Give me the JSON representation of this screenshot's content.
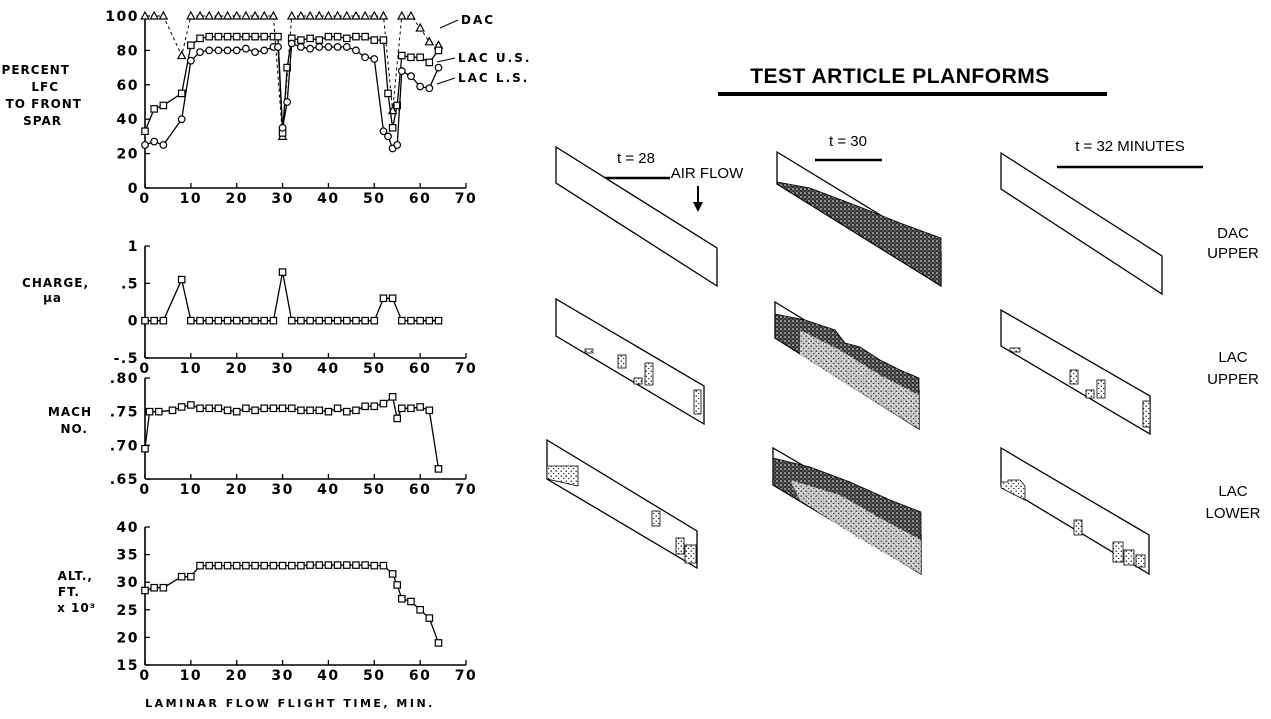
{
  "chart_data": [
    {
      "type": "line",
      "ylabel": [
        "PERCENT",
        "LFC",
        "TO FRONT",
        "SPAR"
      ],
      "xlim": [
        0,
        70
      ],
      "ylim": [
        0,
        100
      ],
      "xticks": [
        "0",
        "10",
        "20",
        "30",
        "40",
        "50",
        "60",
        "70"
      ],
      "yticks": [
        "0",
        "20",
        "40",
        "60",
        "80",
        "100"
      ],
      "series": [
        {
          "name": "DAC",
          "marker": "triangle",
          "x": [
            0,
            2,
            4,
            8,
            10,
            12,
            14,
            16,
            18,
            20,
            22,
            24,
            26,
            28,
            30,
            32,
            34,
            36,
            38,
            40,
            42,
            44,
            46,
            48,
            50,
            52,
            54,
            56,
            58,
            60,
            62,
            64
          ],
          "y": [
            100,
            100,
            100,
            77,
            100,
            100,
            100,
            100,
            100,
            100,
            100,
            100,
            100,
            100,
            30,
            100,
            100,
            100,
            100,
            100,
            100,
            100,
            100,
            100,
            100,
            100,
            45,
            100,
            100,
            93,
            85,
            83
          ]
        },
        {
          "name": "LAC U.S.",
          "marker": "square",
          "x": [
            0,
            2,
            4,
            8,
            10,
            12,
            14,
            16,
            18,
            20,
            22,
            24,
            26,
            28,
            29,
            30,
            31,
            32,
            34,
            36,
            38,
            40,
            42,
            44,
            46,
            48,
            50,
            52,
            53,
            54,
            55,
            56,
            58,
            60,
            62,
            64
          ],
          "y": [
            33,
            46,
            48,
            55,
            83,
            87,
            88,
            88,
            88,
            88,
            88,
            88,
            88,
            88,
            88,
            32,
            70,
            87,
            86,
            87,
            86,
            88,
            88,
            87,
            88,
            88,
            86,
            86,
            55,
            35,
            48,
            77,
            76,
            76,
            73,
            80
          ]
        },
        {
          "name": "LAC L.S.",
          "marker": "circle",
          "x": [
            0,
            2,
            4,
            8,
            10,
            12,
            14,
            16,
            18,
            20,
            22,
            24,
            26,
            28,
            29,
            30,
            31,
            32,
            34,
            36,
            38,
            40,
            42,
            44,
            46,
            48,
            50,
            52,
            53,
            54,
            55,
            56,
            58,
            60,
            62,
            64
          ],
          "y": [
            25,
            27,
            25,
            40,
            74,
            79,
            80,
            80,
            80,
            80,
            81,
            79,
            80,
            82,
            82,
            35,
            50,
            84,
            82,
            81,
            82,
            82,
            82,
            82,
            80,
            76,
            75,
            33,
            30,
            23,
            25,
            68,
            65,
            59,
            58,
            70
          ]
        }
      ]
    },
    {
      "type": "line",
      "ylabel": [
        "CHARGE,",
        "μa"
      ],
      "xlim": [
        0,
        70
      ],
      "ylim": [
        -0.5,
        1
      ],
      "xticks": [
        "0",
        "10",
        "20",
        "30",
        "40",
        "50",
        "60",
        "70"
      ],
      "yticks": [
        "-.5",
        "0",
        ".5",
        "1"
      ],
      "series": [
        {
          "marker": "square",
          "x": [
            0,
            2,
            4,
            8,
            10,
            12,
            14,
            16,
            18,
            20,
            22,
            24,
            26,
            28,
            30,
            32,
            34,
            36,
            38,
            40,
            42,
            44,
            46,
            48,
            50,
            52,
            54,
            56,
            58,
            60,
            62,
            64
          ],
          "y": [
            0,
            0,
            0,
            0.55,
            0,
            0,
            0,
            0,
            0,
            0,
            0,
            0,
            0,
            0,
            0.65,
            0,
            0,
            0,
            0,
            0,
            0,
            0,
            0,
            0,
            0,
            0.3,
            0.3,
            0,
            0,
            0,
            0,
            0
          ]
        }
      ]
    },
    {
      "type": "line",
      "ylabel": [
        "MACH",
        "NO."
      ],
      "xlim": [
        0,
        70
      ],
      "ylim": [
        0.65,
        0.8
      ],
      "xticks": [
        "0",
        "10",
        "20",
        "30",
        "40",
        "50",
        "60",
        "70"
      ],
      "yticks": [
        ".65",
        ".70",
        ".75",
        ".80"
      ],
      "series": [
        {
          "marker": "square",
          "x": [
            0,
            1,
            3,
            6,
            8,
            10,
            12,
            14,
            16,
            18,
            20,
            22,
            24,
            26,
            28,
            30,
            32,
            34,
            36,
            38,
            40,
            42,
            44,
            46,
            48,
            50,
            52,
            54,
            55,
            56,
            58,
            60,
            62,
            64
          ],
          "y": [
            0.695,
            0.75,
            0.75,
            0.752,
            0.757,
            0.76,
            0.755,
            0.755,
            0.755,
            0.752,
            0.75,
            0.755,
            0.752,
            0.755,
            0.755,
            0.755,
            0.755,
            0.752,
            0.752,
            0.752,
            0.75,
            0.755,
            0.75,
            0.752,
            0.758,
            0.758,
            0.762,
            0.772,
            0.74,
            0.755,
            0.755,
            0.757,
            0.752,
            0.665
          ]
        }
      ]
    },
    {
      "type": "line",
      "ylabel": [
        "ALT.,",
        "FT.",
        "x 10³"
      ],
      "xlabel": "LAMINAR FLOW FLIGHT TIME, MIN.",
      "xlim": [
        0,
        70
      ],
      "ylim": [
        15,
        40
      ],
      "xticks": [
        "0",
        "10",
        "20",
        "30",
        "40",
        "50",
        "60",
        "70"
      ],
      "yticks": [
        "15",
        "20",
        "25",
        "30",
        "35",
        "40"
      ],
      "series": [
        {
          "marker": "square",
          "x": [
            0,
            2,
            4,
            8,
            10,
            12,
            14,
            16,
            18,
            20,
            22,
            24,
            26,
            28,
            30,
            32,
            34,
            36,
            38,
            40,
            42,
            44,
            46,
            48,
            50,
            52,
            54,
            55,
            56,
            58,
            60,
            62,
            64
          ],
          "y": [
            28.5,
            29,
            29,
            31,
            31,
            33,
            33,
            33,
            33,
            33,
            33,
            33,
            33,
            33,
            33,
            33,
            33,
            33.1,
            33.1,
            33.1,
            33.1,
            33.1,
            33.1,
            33.1,
            33,
            33,
            31.5,
            29.5,
            27,
            26.5,
            25,
            23.5,
            19
          ]
        }
      ]
    }
  ],
  "legend_labels": {
    "dac": "DAC",
    "lac_us": "LAC U.S.",
    "lac_ls": "LAC L.S."
  },
  "planforms": {
    "title": "TEST ARTICLE PLANFORMS",
    "columns": [
      "t = 28",
      "t = 30",
      "t = 32 MINUTES"
    ],
    "air_flow_label": "AIR FLOW",
    "rows": [
      {
        "label": [
          "DAC",
          "UPPER"
        ],
        "fill_level": [
          "none",
          "heavy",
          "none"
        ]
      },
      {
        "label": [
          "LAC",
          "UPPER"
        ],
        "fill_level": [
          "light",
          "heavy",
          "light"
        ]
      },
      {
        "label": [
          "LAC",
          "LOWER"
        ],
        "fill_level": [
          "light",
          "heavy",
          "light"
        ]
      }
    ]
  }
}
